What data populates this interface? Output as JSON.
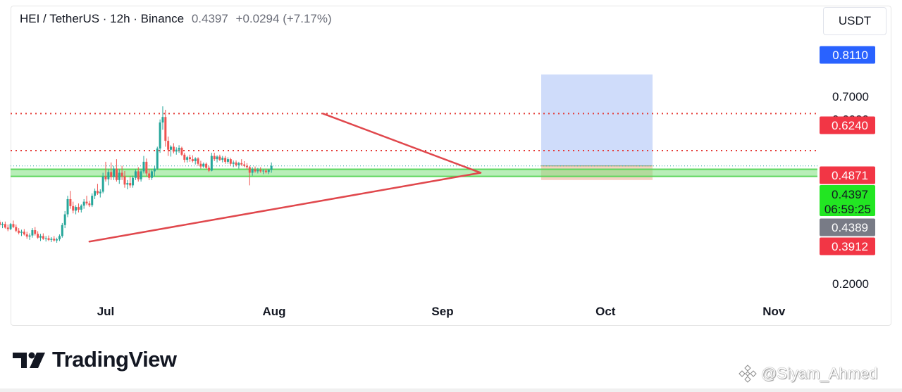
{
  "header": {
    "symbol": "HEI / TetherUS · 12h · Binance",
    "price": "0.4397",
    "change": "+0.0294 (+7.17%)"
  },
  "currency_button": "USDT",
  "price_labels": [
    {
      "value": "0.8110",
      "bg": "#2962ff",
      "fg": "#ffffff"
    },
    {
      "value": "0.6240",
      "bg": "#f23645",
      "fg": "#ffffff"
    },
    {
      "value": "0.4871",
      "bg": "#f23645",
      "fg": "#ffffff"
    },
    {
      "value": "0.4397",
      "sub": "06:59:25",
      "bg": "#22e622",
      "fg": "#131722"
    },
    {
      "value": "0.4389",
      "bg": "#787b86",
      "fg": "#ffffff"
    },
    {
      "value": "0.3912",
      "bg": "#f23645",
      "fg": "#ffffff"
    }
  ],
  "logo_text": "TradingView",
  "watermark": "@Siyam_Ahmed",
  "colors": {
    "up": "#26a69a",
    "down": "#ef5350",
    "triangle": "#e0474c",
    "resistance": "#e53935",
    "support_zone": "#7ee07e",
    "target_zone": "#cfdcfa",
    "risk_zone": "#f5d3c4"
  },
  "chart_data": {
    "type": "candlestick",
    "title": "HEI / TetherUS · 12h · Binance",
    "x_ticks": [
      "Jul",
      "Aug",
      "Sep",
      "Oct",
      "Nov"
    ],
    "y_ticks": [
      "0.7000",
      "0.6000",
      "0.2000"
    ],
    "y_scale": "log",
    "horizontal_levels": [
      0.624,
      0.4871
    ],
    "current_price": 0.4397,
    "support_zone": [
      0.41,
      0.43
    ],
    "position": {
      "target": 0.811,
      "entry": 0.4397,
      "stop": 0.4
    },
    "triangle": {
      "upper": [
        [
          "2024-08-10",
          0.624
        ],
        [
          "2024-09-08",
          0.42
        ]
      ],
      "lower": [
        [
          "2024-06-28",
          0.265
        ],
        [
          "2024-09-08",
          0.42
        ]
      ]
    },
    "candles_start": "2024-06-07",
    "candle_interval": "12h",
    "ohlc": [
      [
        0.3,
        0.31,
        0.298,
        0.306
      ],
      [
        0.306,
        0.318,
        0.302,
        0.314
      ],
      [
        0.314,
        0.322,
        0.31,
        0.318
      ],
      [
        0.318,
        0.325,
        0.312,
        0.316
      ],
      [
        0.316,
        0.322,
        0.305,
        0.308
      ],
      [
        0.308,
        0.314,
        0.3,
        0.311
      ],
      [
        0.311,
        0.316,
        0.302,
        0.304
      ],
      [
        0.304,
        0.309,
        0.296,
        0.3
      ],
      [
        0.3,
        0.306,
        0.294,
        0.302
      ],
      [
        0.302,
        0.306,
        0.292,
        0.296
      ],
      [
        0.296,
        0.302,
        0.29,
        0.298
      ],
      [
        0.298,
        0.303,
        0.289,
        0.291
      ],
      [
        0.291,
        0.297,
        0.284,
        0.288
      ],
      [
        0.288,
        0.3,
        0.286,
        0.298
      ],
      [
        0.298,
        0.305,
        0.29,
        0.292
      ],
      [
        0.292,
        0.297,
        0.282,
        0.285
      ],
      [
        0.285,
        0.29,
        0.278,
        0.281
      ],
      [
        0.281,
        0.287,
        0.275,
        0.283
      ],
      [
        0.283,
        0.288,
        0.276,
        0.278
      ],
      [
        0.278,
        0.283,
        0.27,
        0.274
      ],
      [
        0.274,
        0.28,
        0.268,
        0.276
      ],
      [
        0.276,
        0.29,
        0.272,
        0.286
      ],
      [
        0.286,
        0.292,
        0.276,
        0.279
      ],
      [
        0.279,
        0.284,
        0.27,
        0.272
      ],
      [
        0.272,
        0.279,
        0.266,
        0.275
      ],
      [
        0.275,
        0.28,
        0.268,
        0.27
      ],
      [
        0.27,
        0.275,
        0.265,
        0.271
      ],
      [
        0.271,
        0.276,
        0.266,
        0.268
      ],
      [
        0.268,
        0.273,
        0.264,
        0.27
      ],
      [
        0.27,
        0.275,
        0.265,
        0.267
      ],
      [
        0.267,
        0.272,
        0.263,
        0.269
      ],
      [
        0.269,
        0.278,
        0.266,
        0.275
      ],
      [
        0.275,
        0.3,
        0.272,
        0.296
      ],
      [
        0.296,
        0.325,
        0.29,
        0.318
      ],
      [
        0.318,
        0.36,
        0.312,
        0.352
      ],
      [
        0.352,
        0.372,
        0.33,
        0.336
      ],
      [
        0.336,
        0.346,
        0.32,
        0.326
      ],
      [
        0.326,
        0.338,
        0.318,
        0.334
      ],
      [
        0.334,
        0.342,
        0.322,
        0.328
      ],
      [
        0.328,
        0.34,
        0.322,
        0.337
      ],
      [
        0.337,
        0.352,
        0.33,
        0.346
      ],
      [
        0.346,
        0.36,
        0.338,
        0.342
      ],
      [
        0.342,
        0.348,
        0.334,
        0.338
      ],
      [
        0.338,
        0.366,
        0.334,
        0.36
      ],
      [
        0.36,
        0.378,
        0.352,
        0.372
      ],
      [
        0.372,
        0.39,
        0.362,
        0.366
      ],
      [
        0.366,
        0.376,
        0.356,
        0.37
      ],
      [
        0.37,
        0.42,
        0.366,
        0.41
      ],
      [
        0.41,
        0.452,
        0.396,
        0.402
      ],
      [
        0.402,
        0.43,
        0.386,
        0.422
      ],
      [
        0.422,
        0.45,
        0.4,
        0.408
      ],
      [
        0.408,
        0.44,
        0.4,
        0.432
      ],
      [
        0.432,
        0.46,
        0.396,
        0.4
      ],
      [
        0.4,
        0.43,
        0.39,
        0.42
      ],
      [
        0.42,
        0.44,
        0.4,
        0.41
      ],
      [
        0.41,
        0.425,
        0.38,
        0.388
      ],
      [
        0.388,
        0.4,
        0.376,
        0.392
      ],
      [
        0.392,
        0.41,
        0.38,
        0.386
      ],
      [
        0.386,
        0.412,
        0.38,
        0.406
      ],
      [
        0.406,
        0.43,
        0.4,
        0.424
      ],
      [
        0.424,
        0.436,
        0.396,
        0.402
      ],
      [
        0.402,
        0.43,
        0.396,
        0.424
      ],
      [
        0.424,
        0.47,
        0.418,
        0.452
      ],
      [
        0.452,
        0.462,
        0.41,
        0.418
      ],
      [
        0.418,
        0.43,
        0.4,
        0.406
      ],
      [
        0.406,
        0.43,
        0.4,
        0.424
      ],
      [
        0.424,
        0.44,
        0.41,
        0.432
      ],
      [
        0.432,
        0.5,
        0.428,
        0.494
      ],
      [
        0.494,
        0.6,
        0.48,
        0.588
      ],
      [
        0.588,
        0.655,
        0.56,
        0.61
      ],
      [
        0.61,
        0.64,
        0.5,
        0.52
      ],
      [
        0.52,
        0.535,
        0.47,
        0.49
      ],
      [
        0.49,
        0.505,
        0.468,
        0.5
      ],
      [
        0.5,
        0.512,
        0.478,
        0.484
      ],
      [
        0.484,
        0.498,
        0.474,
        0.49
      ],
      [
        0.49,
        0.505,
        0.48,
        0.496
      ],
      [
        0.496,
        0.5,
        0.47,
        0.474
      ],
      [
        0.474,
        0.48,
        0.45,
        0.458
      ],
      [
        0.458,
        0.47,
        0.45,
        0.466
      ],
      [
        0.466,
        0.474,
        0.452,
        0.46
      ],
      [
        0.46,
        0.472,
        0.45,
        0.454
      ],
      [
        0.454,
        0.466,
        0.444,
        0.462
      ],
      [
        0.462,
        0.466,
        0.44,
        0.446
      ],
      [
        0.446,
        0.455,
        0.432,
        0.438
      ],
      [
        0.438,
        0.45,
        0.434,
        0.446
      ],
      [
        0.446,
        0.45,
        0.43,
        0.434
      ],
      [
        0.434,
        0.44,
        0.422,
        0.426
      ],
      [
        0.426,
        0.48,
        0.424,
        0.47
      ],
      [
        0.47,
        0.48,
        0.454,
        0.46
      ],
      [
        0.46,
        0.472,
        0.45,
        0.468
      ],
      [
        0.468,
        0.474,
        0.454,
        0.458
      ],
      [
        0.458,
        0.47,
        0.45,
        0.464
      ],
      [
        0.464,
        0.47,
        0.446,
        0.452
      ],
      [
        0.452,
        0.466,
        0.446,
        0.46
      ],
      [
        0.46,
        0.464,
        0.44,
        0.446
      ],
      [
        0.446,
        0.456,
        0.436,
        0.45
      ],
      [
        0.45,
        0.456,
        0.438,
        0.442
      ],
      [
        0.442,
        0.452,
        0.432,
        0.448
      ],
      [
        0.448,
        0.46,
        0.44,
        0.444
      ],
      [
        0.444,
        0.454,
        0.436,
        0.44
      ],
      [
        0.44,
        0.448,
        0.43,
        0.436
      ],
      [
        0.436,
        0.44,
        0.386,
        0.42
      ],
      [
        0.42,
        0.436,
        0.412,
        0.43
      ],
      [
        0.43,
        0.438,
        0.42,
        0.424
      ],
      [
        0.424,
        0.434,
        0.418,
        0.428
      ],
      [
        0.428,
        0.436,
        0.42,
        0.424
      ],
      [
        0.424,
        0.43,
        0.416,
        0.426
      ],
      [
        0.426,
        0.432,
        0.418,
        0.422
      ],
      [
        0.422,
        0.43,
        0.416,
        0.428
      ],
      [
        0.428,
        0.45,
        0.42,
        0.4397
      ]
    ]
  }
}
